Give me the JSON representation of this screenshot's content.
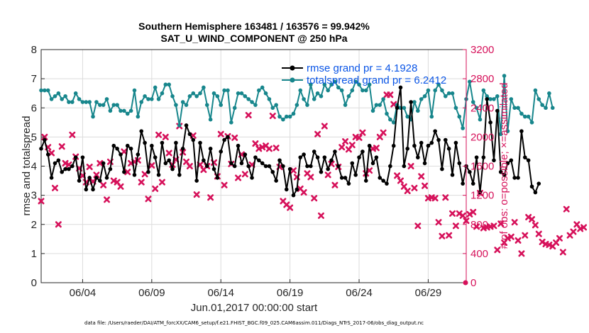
{
  "chart_data": {
    "type": "line",
    "title": "Southern Hemisphere 163481 / 163576 = 99.942%",
    "subtitle": "SAT_U_WIND_COMPONENT @ 250 hPa",
    "xlabel": "Jun.01,2017 00:00:00 start",
    "ylabel": "rmse and totalspread",
    "ylabel_right": "# of obs: o=possible; ×=assimilated",
    "footnote": "data file: /Users/raeder/DAI/ATM_forcXX/CAM6_setup/f.e21.FHIST_BGC.f09_025.CAM6assim.011/Diags_NTrS_2017-06/obs_diag_output.nc",
    "x_tick_labels": [
      "06/04",
      "06/09",
      "06/14",
      "06/19",
      "06/24",
      "06/29"
    ],
    "x_tick_days": [
      4,
      9,
      14,
      19,
      24,
      29
    ],
    "xlim_days": [
      1,
      31.75
    ],
    "ylim": [
      0,
      8
    ],
    "y_ticks": [
      "0",
      "1",
      "2",
      "3",
      "4",
      "5",
      "6",
      "7",
      "8"
    ],
    "ylim_right": [
      0,
      3200
    ],
    "y_ticks_right": [
      "0",
      "400",
      "800",
      "1200",
      "1600",
      "2000",
      "2400",
      "2800",
      "3200"
    ],
    "grid": true,
    "legend_position": "top-right",
    "time_step_days": 0.25,
    "first_time_day": 1.0,
    "series": [
      {
        "name": "rmse grand pr = 4.1928",
        "axis": "left",
        "color": "#000000",
        "marker": "circle",
        "values": [
          4.6,
          4.9,
          4.4,
          3.6,
          4.1,
          4.2,
          3.8,
          3.9,
          3.9,
          4.0,
          4.3,
          3.5,
          4.3,
          3.2,
          3.6,
          3.2,
          3.6,
          3.5,
          4.1,
          3.6,
          3.9,
          4.7,
          4.6,
          4.4,
          3.8,
          4.7,
          4.6,
          3.7,
          4.4,
          5.2,
          4.8,
          3.8,
          4.7,
          4.3,
          3.7,
          4.8,
          4.1,
          4.2,
          3.9,
          4.8,
          3.7,
          4.6,
          5.4,
          5.1,
          4.9,
          3.5,
          4.8,
          4.2,
          4.0,
          4.6,
          3.9,
          3.6,
          4.5,
          4.9,
          5.0,
          4.1,
          4.0,
          4.7,
          4.1,
          4.4,
          4.0,
          3.6,
          4.3,
          4.2,
          4.1,
          4.0,
          4.0,
          3.8,
          3.5,
          4.2,
          4.0,
          3.2,
          3.9,
          3.0,
          3.2,
          4.3,
          4.4,
          4.0,
          4.0,
          4.5,
          4.3,
          3.8,
          4.3,
          3.9,
          4.2,
          4.5,
          4.0,
          3.6,
          3.6,
          3.4,
          4.1,
          3.7,
          4.3,
          4.5,
          3.5,
          4.7,
          4.1,
          4.3,
          3.6,
          3.5,
          3.4,
          4.0,
          4.7,
          6.0,
          6.7,
          4.0,
          4.6,
          6.2,
          4.7,
          4.3,
          4.8,
          4.1,
          4.7,
          4.8,
          5.2,
          4.9,
          3.9,
          4.9,
          4.6,
          3.7,
          4.8,
          4.1,
          3.4,
          4.0,
          3.8,
          3.4,
          4.3,
          3.1,
          4.3,
          6.3,
          5.5,
          4.2,
          5.9,
          3.8,
          3.7,
          4.1,
          4.2,
          3.6,
          3.6,
          5.2,
          4.3,
          4.2,
          3.3,
          3.1,
          3.4
        ]
      },
      {
        "name": "totalspread grand pr = 6.2412",
        "axis": "left",
        "color": "#17868c",
        "marker": "circle",
        "values": [
          6.6,
          6.6,
          6.6,
          6.3,
          6.4,
          6.5,
          6.3,
          6.4,
          6.2,
          6.2,
          6.5,
          6.3,
          6.2,
          6.2,
          6.2,
          5.7,
          6.2,
          6.1,
          6.1,
          6.3,
          5.9,
          6.1,
          6.1,
          5.9,
          5.9,
          5.8,
          5.9,
          6.6,
          5.7,
          6.2,
          6.4,
          6.3,
          6.3,
          6.7,
          6.3,
          6.5,
          6.8,
          6.8,
          6.4,
          6.1,
          5.4,
          6.2,
          6.1,
          6.4,
          6.5,
          6.4,
          6.5,
          6.7,
          6.1,
          5.6,
          6.5,
          6.4,
          6.1,
          6.6,
          6.6,
          5.5,
          6.0,
          6.5,
          6.5,
          6.4,
          6.3,
          6.2,
          6.1,
          6.6,
          6.7,
          6.5,
          6.3,
          6.0,
          6.1,
          5.7,
          5.6,
          5.7,
          5.7,
          5.8,
          6.1,
          6.6,
          6.3,
          6.1,
          6.8,
          6.3,
          6.5,
          6.4,
          6.8,
          6.6,
          6.8,
          6.9,
          6.7,
          6.6,
          6.1,
          6.4,
          6.6,
          6.9,
          6.8,
          6.6,
          6.6,
          6.8,
          5.9,
          6.1,
          6.1,
          6.3,
          5.8,
          5.6,
          5.5,
          6.1,
          6.0,
          6.0,
          5.7,
          5.6,
          6.2,
          5.9,
          6.3,
          6.4,
          6.6,
          5.7,
          6.6,
          6.8,
          6.6,
          6.4,
          6.5,
          6.5,
          6.0,
          5.7,
          5.3,
          6.3,
          6.9,
          6.2,
          6.0,
          5.6,
          6.6,
          6.4,
          6.3,
          6.3,
          6.4,
          5.1,
          7.1,
          5.2,
          6.3,
          6.0,
          6.0,
          5.8,
          5.7,
          5.7,
          5.5,
          6.6,
          6.3,
          6.1,
          6.0,
          6.5,
          6.0
        ]
      },
      {
        "name": "assimilated observations",
        "axis": "right",
        "color": "#d6115a",
        "marker": "cross",
        "values": [
          1120,
          2000,
          1860,
          1780,
          1300,
          800,
          1870,
          1640,
          1620,
          2030,
          1730,
          1570,
          1470,
          1380,
          1590,
          1390,
          1480,
          1640,
          1340,
          1140,
          1660,
          1400,
          1380,
          1320,
          1800,
          1520,
          1640,
          1660,
          1680,
          1380,
          1490,
          1150,
          1610,
          1290,
          2030,
          1380,
          2000,
          1780,
          1620,
          1690,
          2150,
          1790,
          1660,
          1600,
          2020,
          1210,
          1620,
          1550,
          1600,
          1170,
          1650,
          1460,
          2040,
          1340,
          2010,
          1630,
          1990,
          1440,
          1760,
          1490,
          2300,
          1620,
          1910,
          1840,
          1860,
          1880,
          1840,
          2290,
          1850,
          1590,
          1120,
          1070,
          1030,
          1540,
          1450,
          1290,
          1240,
          1500,
          1450,
          1160,
          2040,
          920,
          2150,
          1480,
          1630,
          1340,
          1590,
          1860,
          1940,
          1830,
          1890,
          2000,
          1990,
          2060,
          1500,
          1540,
          1840,
          1850,
          2000,
          2060,
          2580,
          2580,
          2450,
          1470,
          1400,
          1320,
          1260,
          1600,
          1300,
          780,
          1460,
          1330,
          1160,
          1170,
          1160,
          830,
          640,
          1170,
          650,
          950,
          780,
          950,
          920,
          850,
          940,
          970,
          770,
          1230,
          750,
          760,
          770,
          780,
          450,
          810,
          550,
          610,
          630,
          830,
          580,
          400,
          650,
          900,
          870,
          790,
          670,
          560,
          530,
          520,
          500,
          550,
          610,
          420,
          1010,
          650,
          700,
          800,
          740,
          760
        ]
      }
    ]
  },
  "colors": {
    "left_axis": "#262626",
    "right_axis": "#d6115a",
    "legend_text": "#0a55e6",
    "grid": "#dcdcdc"
  }
}
